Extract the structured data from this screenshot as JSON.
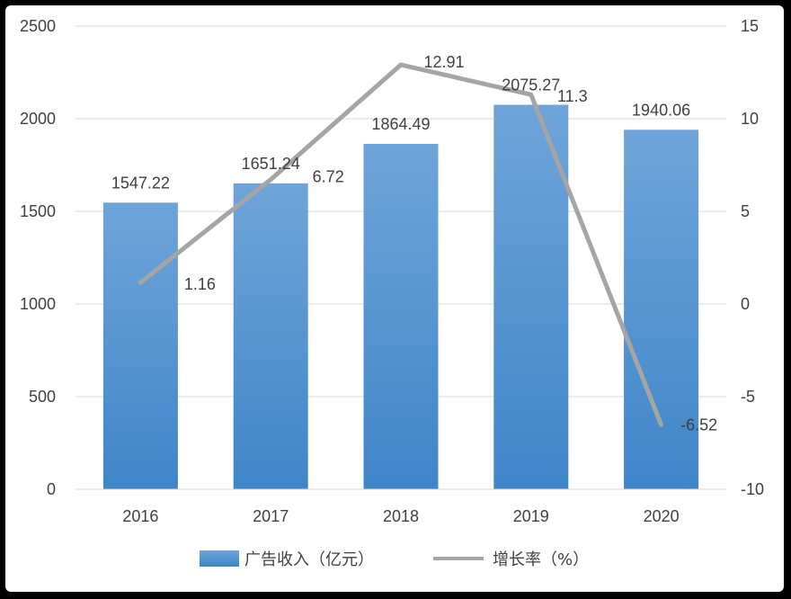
{
  "chart_data": {
    "type": "bar",
    "categories": [
      "2016",
      "2017",
      "2018",
      "2019",
      "2020"
    ],
    "series": [
      {
        "name": "广告收入（亿元）",
        "type": "bar",
        "axis": "left",
        "values": [
          1547.22,
          1651.24,
          1864.49,
          2075.27,
          1940.06
        ],
        "labels": [
          "1547.22",
          "1651.24",
          "1864.49",
          "2075.27",
          "1940.06"
        ],
        "color": "#5b9bd5"
      },
      {
        "name": "增长率（%）",
        "type": "line",
        "axis": "right",
        "values": [
          1.16,
          6.72,
          12.91,
          11.3,
          -6.52
        ],
        "labels": [
          "1.16",
          "6.72",
          "12.91",
          "11.3",
          "-6.52"
        ],
        "color": "#a5a5a5"
      }
    ],
    "left_axis": {
      "ylim": [
        0,
        2500
      ],
      "ticks": [
        0,
        500,
        1000,
        1500,
        2000,
        2500
      ],
      "tick_labels": [
        "0",
        "500",
        "1000",
        "1500",
        "2000",
        "2500"
      ]
    },
    "right_axis": {
      "ylim": [
        -10,
        15
      ],
      "ticks": [
        -10,
        -5,
        0,
        5,
        10,
        15
      ],
      "tick_labels": [
        "-10",
        "-5",
        "0",
        "5",
        "10",
        "15"
      ]
    },
    "grid": true,
    "legend_position": "bottom",
    "title": "",
    "xlabel": "",
    "ylabel": ""
  }
}
